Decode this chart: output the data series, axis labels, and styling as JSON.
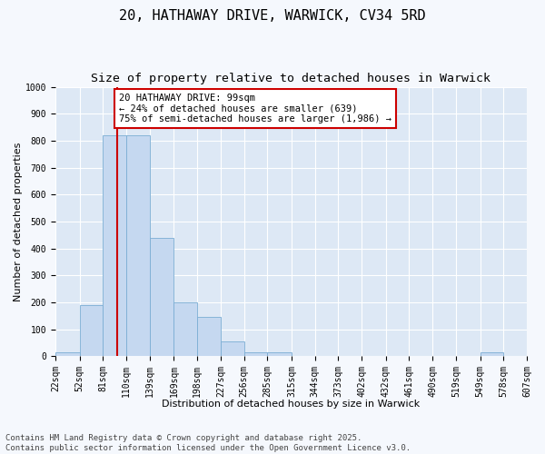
{
  "title_line1": "20, HATHAWAY DRIVE, WARWICK, CV34 5RD",
  "title_line2": "Size of property relative to detached houses in Warwick",
  "xlabel": "Distribution of detached houses by size in Warwick",
  "ylabel": "Number of detached properties",
  "bar_color": "#c5d8f0",
  "bar_edge_color": "#7badd4",
  "background_color": "#dde8f5",
  "fig_background_color": "#f5f8fd",
  "grid_color": "#ffffff",
  "bins": [
    22,
    52,
    81,
    110,
    139,
    169,
    198,
    227,
    256,
    285,
    315,
    344,
    373,
    402,
    432,
    461,
    490,
    519,
    549,
    578,
    607
  ],
  "counts": [
    15,
    190,
    820,
    820,
    440,
    200,
    145,
    55,
    15,
    15,
    0,
    0,
    0,
    0,
    0,
    0,
    0,
    0,
    15,
    0,
    0
  ],
  "red_line_x": 99,
  "annotation_text": "20 HATHAWAY DRIVE: 99sqm\n← 24% of detached houses are smaller (639)\n75% of semi-detached houses are larger (1,986) →",
  "annotation_box_color": "#ffffff",
  "annotation_box_edge": "#cc0000",
  "vline_color": "#cc0000",
  "ylim": [
    0,
    1000
  ],
  "yticks": [
    0,
    100,
    200,
    300,
    400,
    500,
    600,
    700,
    800,
    900,
    1000
  ],
  "footnote": "Contains HM Land Registry data © Crown copyright and database right 2025.\nContains public sector information licensed under the Open Government Licence v3.0.",
  "title_fontsize": 11,
  "subtitle_fontsize": 9.5,
  "axis_label_fontsize": 8,
  "tick_fontsize": 7,
  "annotation_fontsize": 7.5,
  "footnote_fontsize": 6.5
}
